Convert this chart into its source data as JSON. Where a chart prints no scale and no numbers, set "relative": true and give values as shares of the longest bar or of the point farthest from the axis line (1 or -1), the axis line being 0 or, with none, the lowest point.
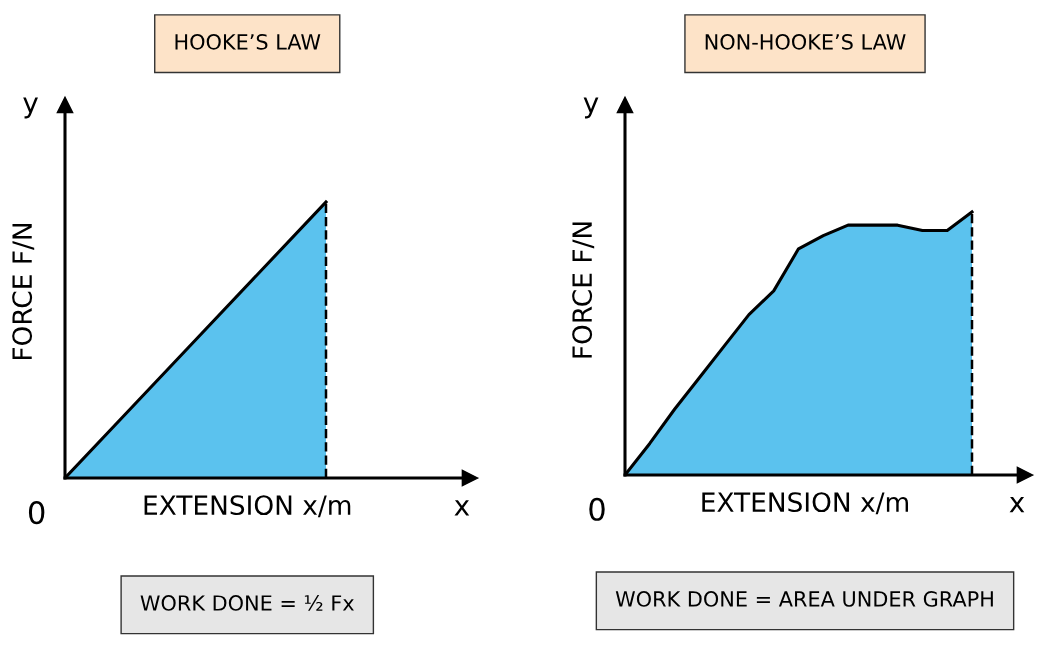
{
  "chart_data": [
    {
      "type": "area",
      "title": "HOOKE’S LAW",
      "xlabel": "EXTENSION x/m",
      "ylabel": "FORCE F/N",
      "relative": true,
      "categories": [
        null,
        null,
        null,
        null,
        null
      ],
      "series": [
        {
          "color": "#5bc2ee",
          "values": [
            0,
            0.25,
            0.5,
            0.75,
            1
          ]
        }
      ],
      "annotations": [
        "WORK DONE = ½ Fx",
        "y",
        "x",
        "0"
      ]
    },
    {
      "type": "area",
      "title": "NON-HOOKE’S LAW",
      "xlabel": "EXTENSION x/m",
      "ylabel": "FORCE F/N",
      "relative": true,
      "categories": [
        null,
        null,
        null,
        null,
        null,
        null,
        null,
        null,
        null,
        null,
        null,
        null,
        null,
        null,
        null
      ],
      "series": [
        {
          "color": "#5bc2ee",
          "values": [
            0,
            0.12,
            0.25,
            0.37,
            0.49,
            0.61,
            0.7,
            0.86,
            0.91,
            0.95,
            0.95,
            0.95,
            0.93,
            0.93,
            1
          ]
        }
      ],
      "annotations": [
        "WORK DONE = AREA UNDER GRAPH",
        "y",
        "x",
        "0"
      ]
    }
  ]
}
